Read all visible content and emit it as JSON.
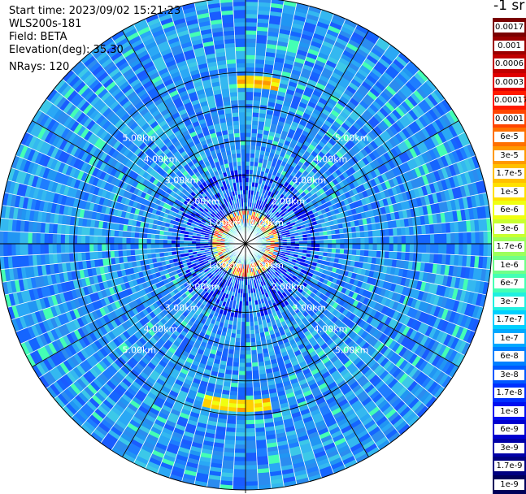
{
  "info": {
    "start_time": "Start time: 2023/09/02 15:21:23",
    "instrument": "WLS200s-181",
    "field": "Field: BETA",
    "elevation": "Elevation(deg): 35.30",
    "nrays": "NRays: 120"
  },
  "colorbar": {
    "title": "-1 sr",
    "labels": [
      "0.0017",
      "0.001",
      "0.0006",
      "0.0003",
      "0.00017",
      "0.0001",
      "6e-5",
      "3e-5",
      "1.7e-5",
      "1e-5",
      "6e-6",
      "3e-6",
      "1.7e-6",
      "1e-6",
      "6e-7",
      "3e-7",
      "1.7e-7",
      "1e-7",
      "6e-8",
      "3e-8",
      "1.7e-8",
      "1e-8",
      "6e-9",
      "3e-9",
      "1.7e-9",
      "1e-9"
    ],
    "colors": [
      "#7a0000",
      "#9b0000",
      "#c00000",
      "#e00000",
      "#ff1a00",
      "#ff4500",
      "#ff7000",
      "#ff9900",
      "#ffc000",
      "#ffe000",
      "#f0ff10",
      "#c8ff30",
      "#9cff5c",
      "#70ff88",
      "#44ffb4",
      "#20f0e0",
      "#00d0ff",
      "#00a8ff",
      "#0080ff",
      "#0058ff",
      "#0030ff",
      "#0010f0",
      "#0000d0",
      "#0000a8",
      "#000080",
      "#00005a"
    ]
  },
  "chart_data": {
    "type": "heatmap",
    "projection": "polar-ppi",
    "n_rays": 120,
    "elevation_deg": 35.3,
    "field": "BETA",
    "range_ring_labels": [
      "1.00km",
      "2.00km",
      "3.00km",
      "4.00km",
      "5.00km"
    ],
    "range_ring_km": [
      1,
      2,
      3,
      4,
      5
    ],
    "color_scale": "log",
    "value_range": [
      1e-09,
      0.0017
    ],
    "features": [
      {
        "description_range_km": [
          0.6,
          1.0
        ],
        "value": 0.0003
      },
      {
        "description_range_km": [
          4.7,
          4.8
        ],
        "value": 3e-05
      }
    ]
  }
}
